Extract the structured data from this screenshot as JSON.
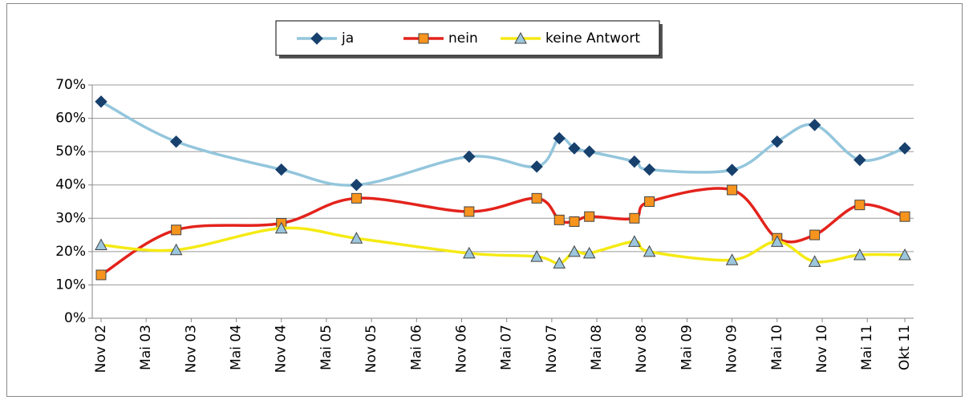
{
  "chart_data": {
    "type": "line",
    "x": [
      "2002-11",
      "2003-09",
      "2004-11",
      "2005-09",
      "2006-12",
      "2007-09",
      "2007-12",
      "2008-02",
      "2008-04",
      "2008-10",
      "2008-12",
      "2009-11",
      "2010-05",
      "2010-10",
      "2011-04",
      "2011-10"
    ],
    "series": [
      {
        "name": "ja",
        "color": "#93c6dc",
        "marker": "diamond",
        "marker_color": "#17406d",
        "values": [
          65,
          53,
          44.6,
          40,
          48.5,
          45.5,
          54,
          51,
          50,
          47,
          44.6,
          44.5,
          53,
          58,
          47.5,
          51
        ]
      },
      {
        "name": "nein",
        "color": "#e3231c",
        "marker": "square",
        "marker_color": "#f7941d",
        "values": [
          13,
          26.5,
          28.5,
          36,
          32,
          36,
          29.5,
          29,
          30.5,
          30,
          35,
          38.5,
          24,
          25,
          34,
          30.5
        ]
      },
      {
        "name": "keine Antwort",
        "color": "#f5ea14",
        "marker": "triangle",
        "marker_color": "#9cc6dc",
        "values": [
          22,
          20.5,
          27,
          24,
          19.5,
          18.5,
          16.5,
          20,
          19.5,
          23,
          20,
          17.5,
          23,
          17,
          19,
          19
        ]
      }
    ],
    "xlim": [
      "2002-11",
      "2011-10"
    ],
    "xticks": [
      {
        "value": "2002-11",
        "label": "Nov 02"
      },
      {
        "value": "2003-05",
        "label": "Mai 03"
      },
      {
        "value": "2003-11",
        "label": "Nov 03"
      },
      {
        "value": "2004-05",
        "label": "Mai 04"
      },
      {
        "value": "2004-11",
        "label": "Nov 04"
      },
      {
        "value": "2005-05",
        "label": "Mai 05"
      },
      {
        "value": "2005-11",
        "label": "Nov 05"
      },
      {
        "value": "2006-05",
        "label": "Mai 06"
      },
      {
        "value": "2006-11",
        "label": "Nov 06"
      },
      {
        "value": "2007-05",
        "label": "Mai 07"
      },
      {
        "value": "2007-11",
        "label": "Nov 07"
      },
      {
        "value": "2008-05",
        "label": "Mai 08"
      },
      {
        "value": "2008-11",
        "label": "Nov 08"
      },
      {
        "value": "2009-05",
        "label": "Mai 09"
      },
      {
        "value": "2009-11",
        "label": "Nov 09"
      },
      {
        "value": "2010-05",
        "label": "Mai 10"
      },
      {
        "value": "2010-11",
        "label": "Nov 10"
      },
      {
        "value": "2011-05",
        "label": "Mai 11"
      },
      {
        "value": "2011-10",
        "label": "Okt 11"
      }
    ],
    "ylim": [
      0,
      70
    ],
    "yticks": [
      {
        "value": 0,
        "label": "0%"
      },
      {
        "value": 10,
        "label": "10%"
      },
      {
        "value": 20,
        "label": "20%"
      },
      {
        "value": 30,
        "label": "30%"
      },
      {
        "value": 40,
        "label": "40%"
      },
      {
        "value": 50,
        "label": "50%"
      },
      {
        "value": 60,
        "label": "60%"
      },
      {
        "value": 70,
        "label": "70%"
      }
    ],
    "grid": true,
    "legend": "top"
  }
}
